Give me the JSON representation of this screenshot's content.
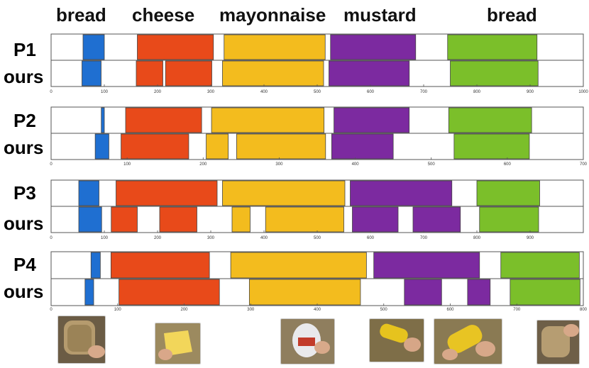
{
  "header_labels": [
    "bread",
    "cheese",
    "mayonnaise",
    "mustard",
    "bread"
  ],
  "row_labels": {
    "p1": "P1",
    "ours1": "ours",
    "p2": "P2",
    "ours2": "ours",
    "p3": "P3",
    "ours3": "ours",
    "p4": "P4",
    "ours4": "ours"
  },
  "colors": {
    "bread": "#1f6fd1",
    "cheese": "#e84a1a",
    "mayonnaise": "#f3bc1e",
    "mustard": "#7c2aa0",
    "bread_end": "#7bbf2a",
    "bar_border": "#444444",
    "axis": "#666666"
  },
  "thumbnails": [
    {
      "name": "bread-thumbnail",
      "color": "#8a7654"
    },
    {
      "name": "cheese-thumbnail",
      "color": "#e6cf63"
    },
    {
      "name": "mayonnaise-thumbnail",
      "color": "#c7bba8"
    },
    {
      "name": "mustard-thumbnail",
      "color": "#b99a44"
    },
    {
      "name": "mustard-squeeze-thumbnail",
      "color": "#c9aa3b"
    },
    {
      "name": "bread-end-thumbnail",
      "color": "#a08060"
    }
  ],
  "chart_data": [
    {
      "type": "gantt",
      "name": "P1",
      "xlim": [
        0,
        1000
      ],
      "xticks": [
        0,
        100,
        200,
        300,
        400,
        500,
        600,
        700,
        800,
        900,
        1000
      ],
      "rows": [
        {
          "label": "P1",
          "segments": [
            {
              "cls": "bread",
              "start": 60,
              "end": 100
            },
            {
              "cls": "cheese",
              "start": 162,
              "end": 305
            },
            {
              "cls": "mayonnaise",
              "start": 325,
              "end": 515
            },
            {
              "cls": "mustard",
              "start": 525,
              "end": 685
            },
            {
              "cls": "bread_end",
              "start": 745,
              "end": 913
            }
          ]
        },
        {
          "label": "ours",
          "segments": [
            {
              "cls": "bread",
              "start": 58,
              "end": 94
            },
            {
              "cls": "cheese",
              "start": 160,
              "end": 210
            },
            {
              "cls": "cheese",
              "start": 215,
              "end": 302
            },
            {
              "cls": "mayonnaise",
              "start": 322,
              "end": 512
            },
            {
              "cls": "mustard",
              "start": 522,
              "end": 673
            },
            {
              "cls": "bread_end",
              "start": 750,
              "end": 915
            }
          ]
        }
      ]
    },
    {
      "type": "gantt",
      "name": "P2",
      "xlim": [
        0,
        700
      ],
      "xticks": [
        0,
        100,
        200,
        300,
        400,
        500,
        600,
        700
      ],
      "rows": [
        {
          "label": "P2",
          "segments": [
            {
              "cls": "bread",
              "start": 66,
              "end": 70
            },
            {
              "cls": "cheese",
              "start": 98,
              "end": 198
            },
            {
              "cls": "mayonnaise",
              "start": 211,
              "end": 359
            },
            {
              "cls": "mustard",
              "start": 372,
              "end": 471
            },
            {
              "cls": "bread_end",
              "start": 523,
              "end": 632
            }
          ]
        },
        {
          "label": "ours",
          "segments": [
            {
              "cls": "bread",
              "start": 58,
              "end": 76
            },
            {
              "cls": "cheese",
              "start": 92,
              "end": 181
            },
            {
              "cls": "mayonnaise",
              "start": 204,
              "end": 233
            },
            {
              "cls": "mayonnaise",
              "start": 244,
              "end": 361
            },
            {
              "cls": "mustard",
              "start": 369,
              "end": 450
            },
            {
              "cls": "bread_end",
              "start": 530,
              "end": 629
            }
          ]
        }
      ]
    },
    {
      "type": "gantt",
      "name": "P3",
      "xlim": [
        0,
        1000
      ],
      "xticks": [
        0,
        100,
        200,
        300,
        400,
        500,
        600,
        700,
        800,
        900
      ],
      "rows": [
        {
          "label": "P3",
          "segments": [
            {
              "cls": "bread",
              "start": 52,
              "end": 90
            },
            {
              "cls": "cheese",
              "start": 122,
              "end": 312
            },
            {
              "cls": "mayonnaise",
              "start": 322,
              "end": 552
            },
            {
              "cls": "mustard",
              "start": 562,
              "end": 753
            },
            {
              "cls": "bread_end",
              "start": 800,
              "end": 918
            }
          ]
        },
        {
          "label": "ours",
          "segments": [
            {
              "cls": "bread",
              "start": 52,
              "end": 95
            },
            {
              "cls": "cheese",
              "start": 113,
              "end": 162
            },
            {
              "cls": "cheese",
              "start": 204,
              "end": 274
            },
            {
              "cls": "mayonnaise",
              "start": 340,
              "end": 374
            },
            {
              "cls": "mayonnaise",
              "start": 403,
              "end": 550
            },
            {
              "cls": "mustard",
              "start": 566,
              "end": 652
            },
            {
              "cls": "mustard",
              "start": 680,
              "end": 769
            },
            {
              "cls": "bread_end",
              "start": 805,
              "end": 916
            }
          ]
        }
      ]
    },
    {
      "type": "gantt",
      "name": "P4",
      "xlim": [
        0,
        800
      ],
      "xticks": [
        0,
        100,
        200,
        300,
        400,
        500,
        600,
        700,
        800
      ],
      "rows": [
        {
          "label": "P4",
          "segments": [
            {
              "cls": "bread",
              "start": 60,
              "end": 74
            },
            {
              "cls": "cheese",
              "start": 90,
              "end": 238
            },
            {
              "cls": "mayonnaise",
              "start": 270,
              "end": 474
            },
            {
              "cls": "mustard",
              "start": 485,
              "end": 644
            },
            {
              "cls": "bread_end",
              "start": 676,
              "end": 794
            }
          ]
        },
        {
          "label": "ours",
          "segments": [
            {
              "cls": "bread",
              "start": 51,
              "end": 64
            },
            {
              "cls": "cheese",
              "start": 102,
              "end": 253
            },
            {
              "cls": "mayonnaise",
              "start": 298,
              "end": 465
            },
            {
              "cls": "mustard",
              "start": 531,
              "end": 587
            },
            {
              "cls": "mustard",
              "start": 626,
              "end": 660
            },
            {
              "cls": "bread_end",
              "start": 690,
              "end": 795
            }
          ]
        }
      ]
    }
  ]
}
